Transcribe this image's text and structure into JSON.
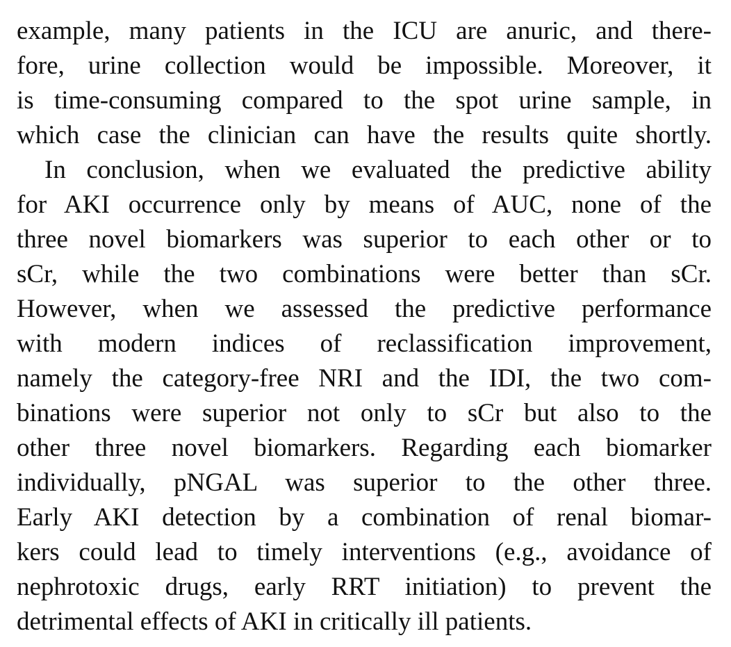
{
  "paragraphs": [
    {
      "lines": [
        "example, many patients in the ICU are anuric, and there-",
        "fore, urine collection would be impossible. Moreover, it",
        "is time-consuming compared to the spot urine sample, in",
        "which case the clinician can have the results quite shortly."
      ]
    },
    {
      "lines": [
        "In conclusion, when we evaluated the predictive ability",
        "for AKI occurrence only by means of AUC, none of the",
        "three novel biomarkers was superior to each other or to",
        "sCr, while the two combinations were better than sCr.",
        "However, when we assessed the predictive performance",
        "with modern indices of reclassification improvement,",
        "namely the category-free NRI and the IDI, the two com-",
        "binations were superior not only to sCr but also to the",
        "other three novel biomarkers. Regarding each biomarker",
        "individually, pNGAL was superior to the other three.",
        "Early AKI detection by a combination of renal biomar-",
        "kers could lead to timely interventions (e.g., avoidance of",
        "nephrotoxic drugs, early RRT initiation) to prevent the",
        "detrimental effects of AKI in critically ill patients."
      ]
    }
  ]
}
